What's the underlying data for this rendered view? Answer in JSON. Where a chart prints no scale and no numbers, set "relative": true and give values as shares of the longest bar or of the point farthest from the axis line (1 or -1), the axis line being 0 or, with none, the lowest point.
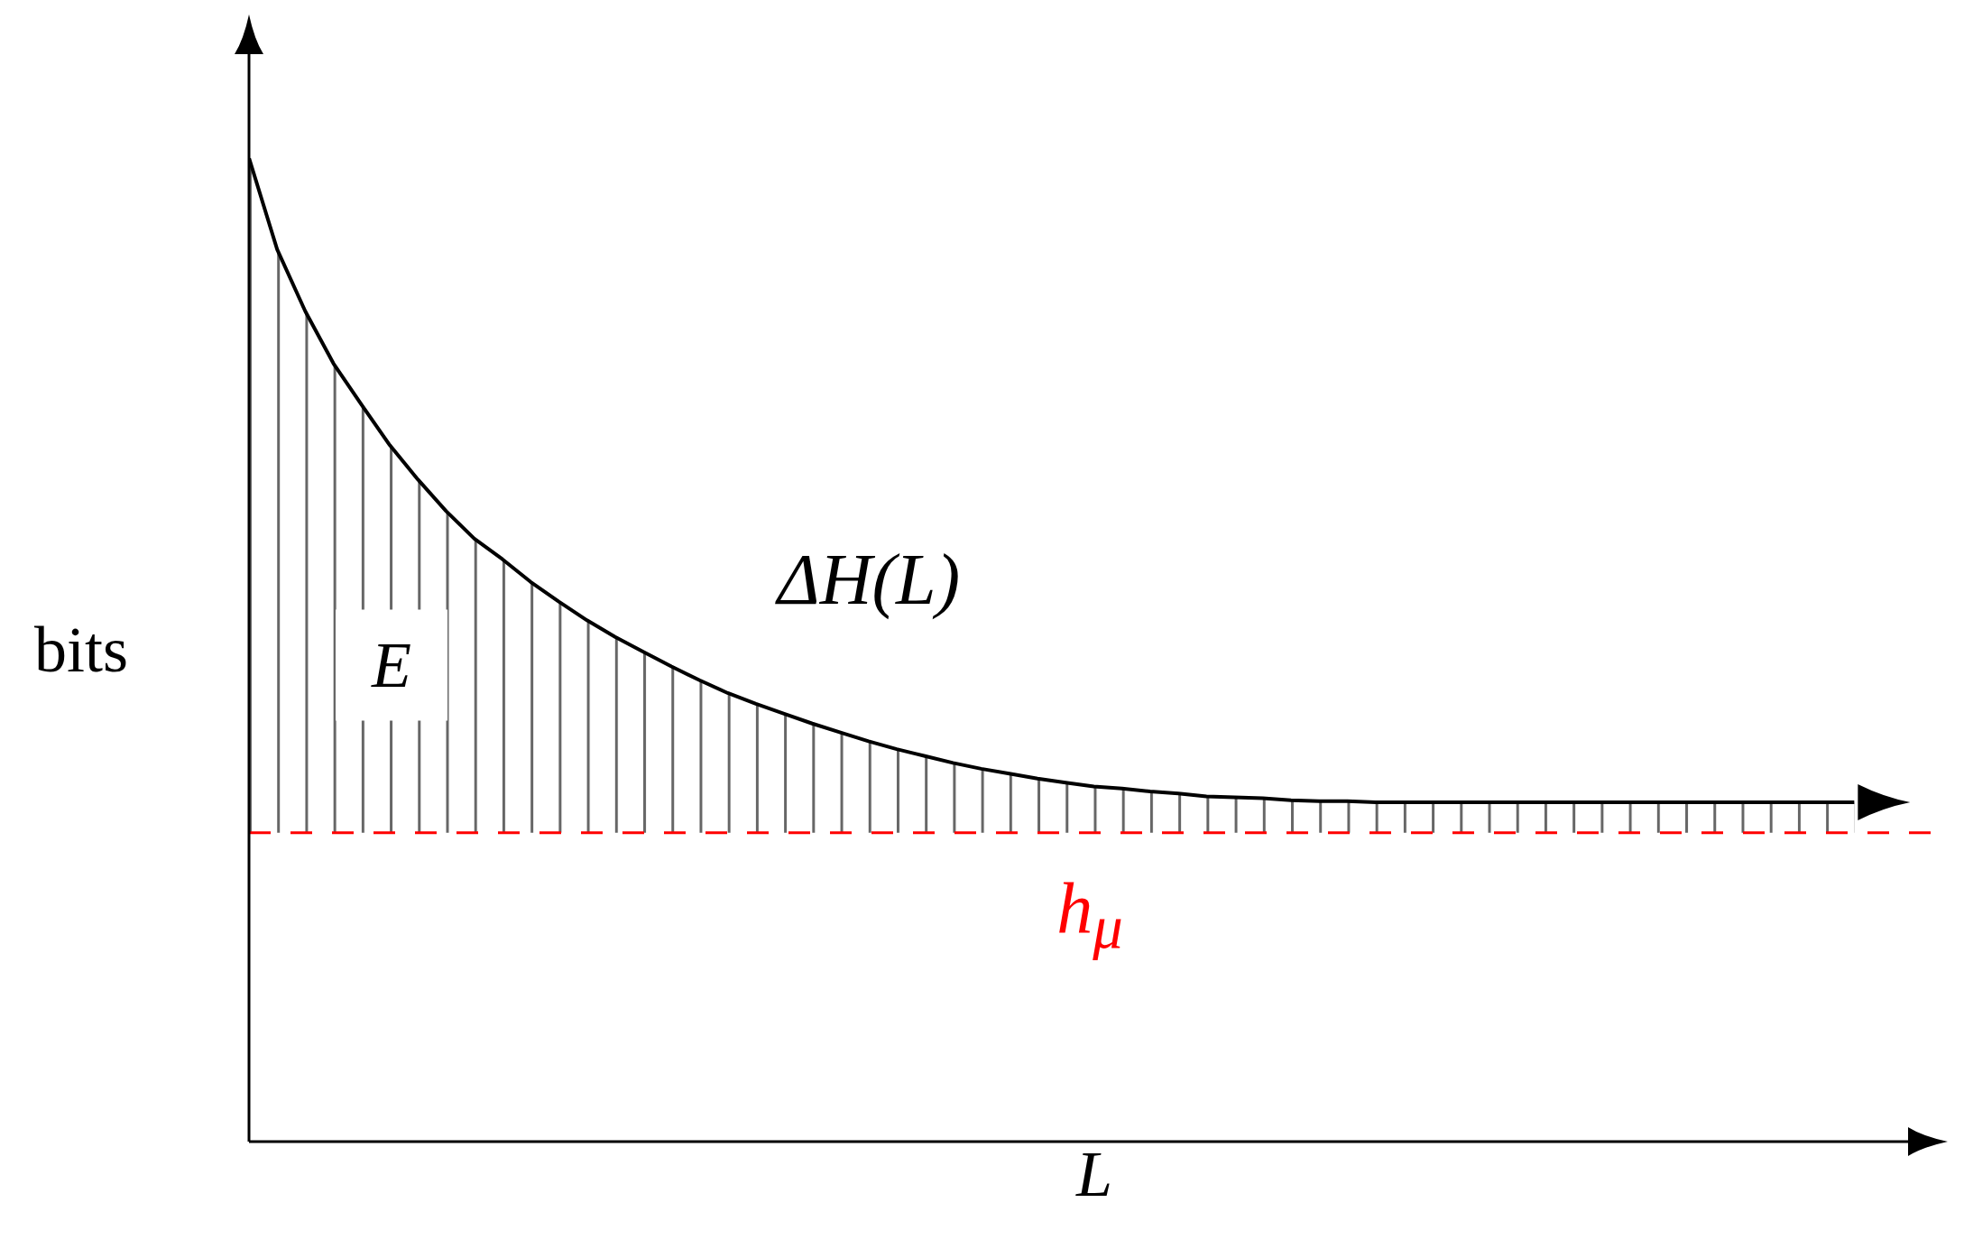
{
  "chart_data": {
    "type": "line",
    "relative": true,
    "xlabel": "L",
    "ylabel": "bits",
    "categories": [
      null,
      null,
      null,
      null,
      null,
      null,
      null,
      null,
      null,
      null,
      null,
      null,
      null,
      null,
      null,
      null,
      null,
      null,
      null,
      null,
      null,
      null,
      null,
      null,
      null,
      null,
      null,
      null,
      null,
      null,
      null,
      null,
      null,
      null,
      null,
      null,
      null,
      null,
      null,
      null,
      null,
      null,
      null,
      null,
      null,
      null,
      null,
      null,
      null,
      null,
      null,
      null,
      null,
      null,
      null,
      null,
      null,
      null
    ],
    "series": [
      {
        "color": "#000000",
        "values": [
          1.0,
          0.907,
          0.844,
          0.791,
          0.749,
          0.708,
          0.673,
          0.641,
          0.613,
          0.592,
          0.569,
          0.549,
          0.53,
          0.513,
          0.498,
          0.483,
          0.469,
          0.456,
          0.445,
          0.435,
          0.425,
          0.416,
          0.407,
          0.399,
          0.392,
          0.385,
          0.379,
          0.374,
          0.369,
          0.365,
          0.361,
          0.359,
          0.356,
          0.354,
          0.351,
          0.35,
          0.349,
          0.347,
          0.346,
          0.346,
          0.345,
          0.345,
          0.345,
          0.345,
          0.345,
          0.345,
          0.345,
          0.345,
          0.345,
          0.345,
          0.345,
          0.345,
          0.345,
          0.345,
          0.345,
          0.345,
          0.345,
          0.345
        ],
        "lower": [
          0.314,
          0.314,
          0.314,
          0.314,
          0.314,
          0.314,
          0.314,
          0.314,
          0.314,
          0.314,
          0.314,
          0.314,
          0.314,
          0.314,
          0.314,
          0.314,
          0.314,
          0.314,
          0.314,
          0.314,
          0.314,
          0.314,
          0.314,
          0.314,
          0.314,
          0.314,
          0.314,
          0.314,
          0.314,
          0.314,
          0.314,
          0.314,
          0.314,
          0.314,
          0.314,
          0.314,
          0.314,
          0.314,
          0.314,
          0.314,
          0.314,
          0.314,
          0.314,
          0.314,
          0.314,
          0.314,
          0.314,
          0.314,
          0.314,
          0.314,
          0.314,
          0.314,
          0.314,
          0.314,
          0.314,
          0.314,
          0.314,
          0.314
        ],
        "upper": [
          1.0,
          0.907,
          0.844,
          0.791,
          0.749,
          0.708,
          0.673,
          0.641,
          0.613,
          0.592,
          0.569,
          0.549,
          0.53,
          0.513,
          0.498,
          0.483,
          0.469,
          0.456,
          0.445,
          0.435,
          0.425,
          0.416,
          0.407,
          0.399,
          0.392,
          0.385,
          0.379,
          0.374,
          0.369,
          0.365,
          0.361,
          0.359,
          0.356,
          0.354,
          0.351,
          0.35,
          0.349,
          0.347,
          0.346,
          0.346,
          0.345,
          0.345,
          0.345,
          0.345,
          0.345,
          0.345,
          0.345,
          0.345,
          0.345,
          0.345,
          0.345,
          0.345,
          0.345,
          0.345,
          0.345,
          0.345,
          0.345,
          0.345
        ]
      }
    ],
    "ref_lines": [
      {
        "axis": "y",
        "value": 0.314,
        "label": "h$_{μ}$",
        "color": "#ff0000",
        "line_style": "dashed"
      }
    ],
    "annotations": [
      "ΔH(L)",
      "E"
    ],
    "marker": "none",
    "line_style": "solid"
  }
}
